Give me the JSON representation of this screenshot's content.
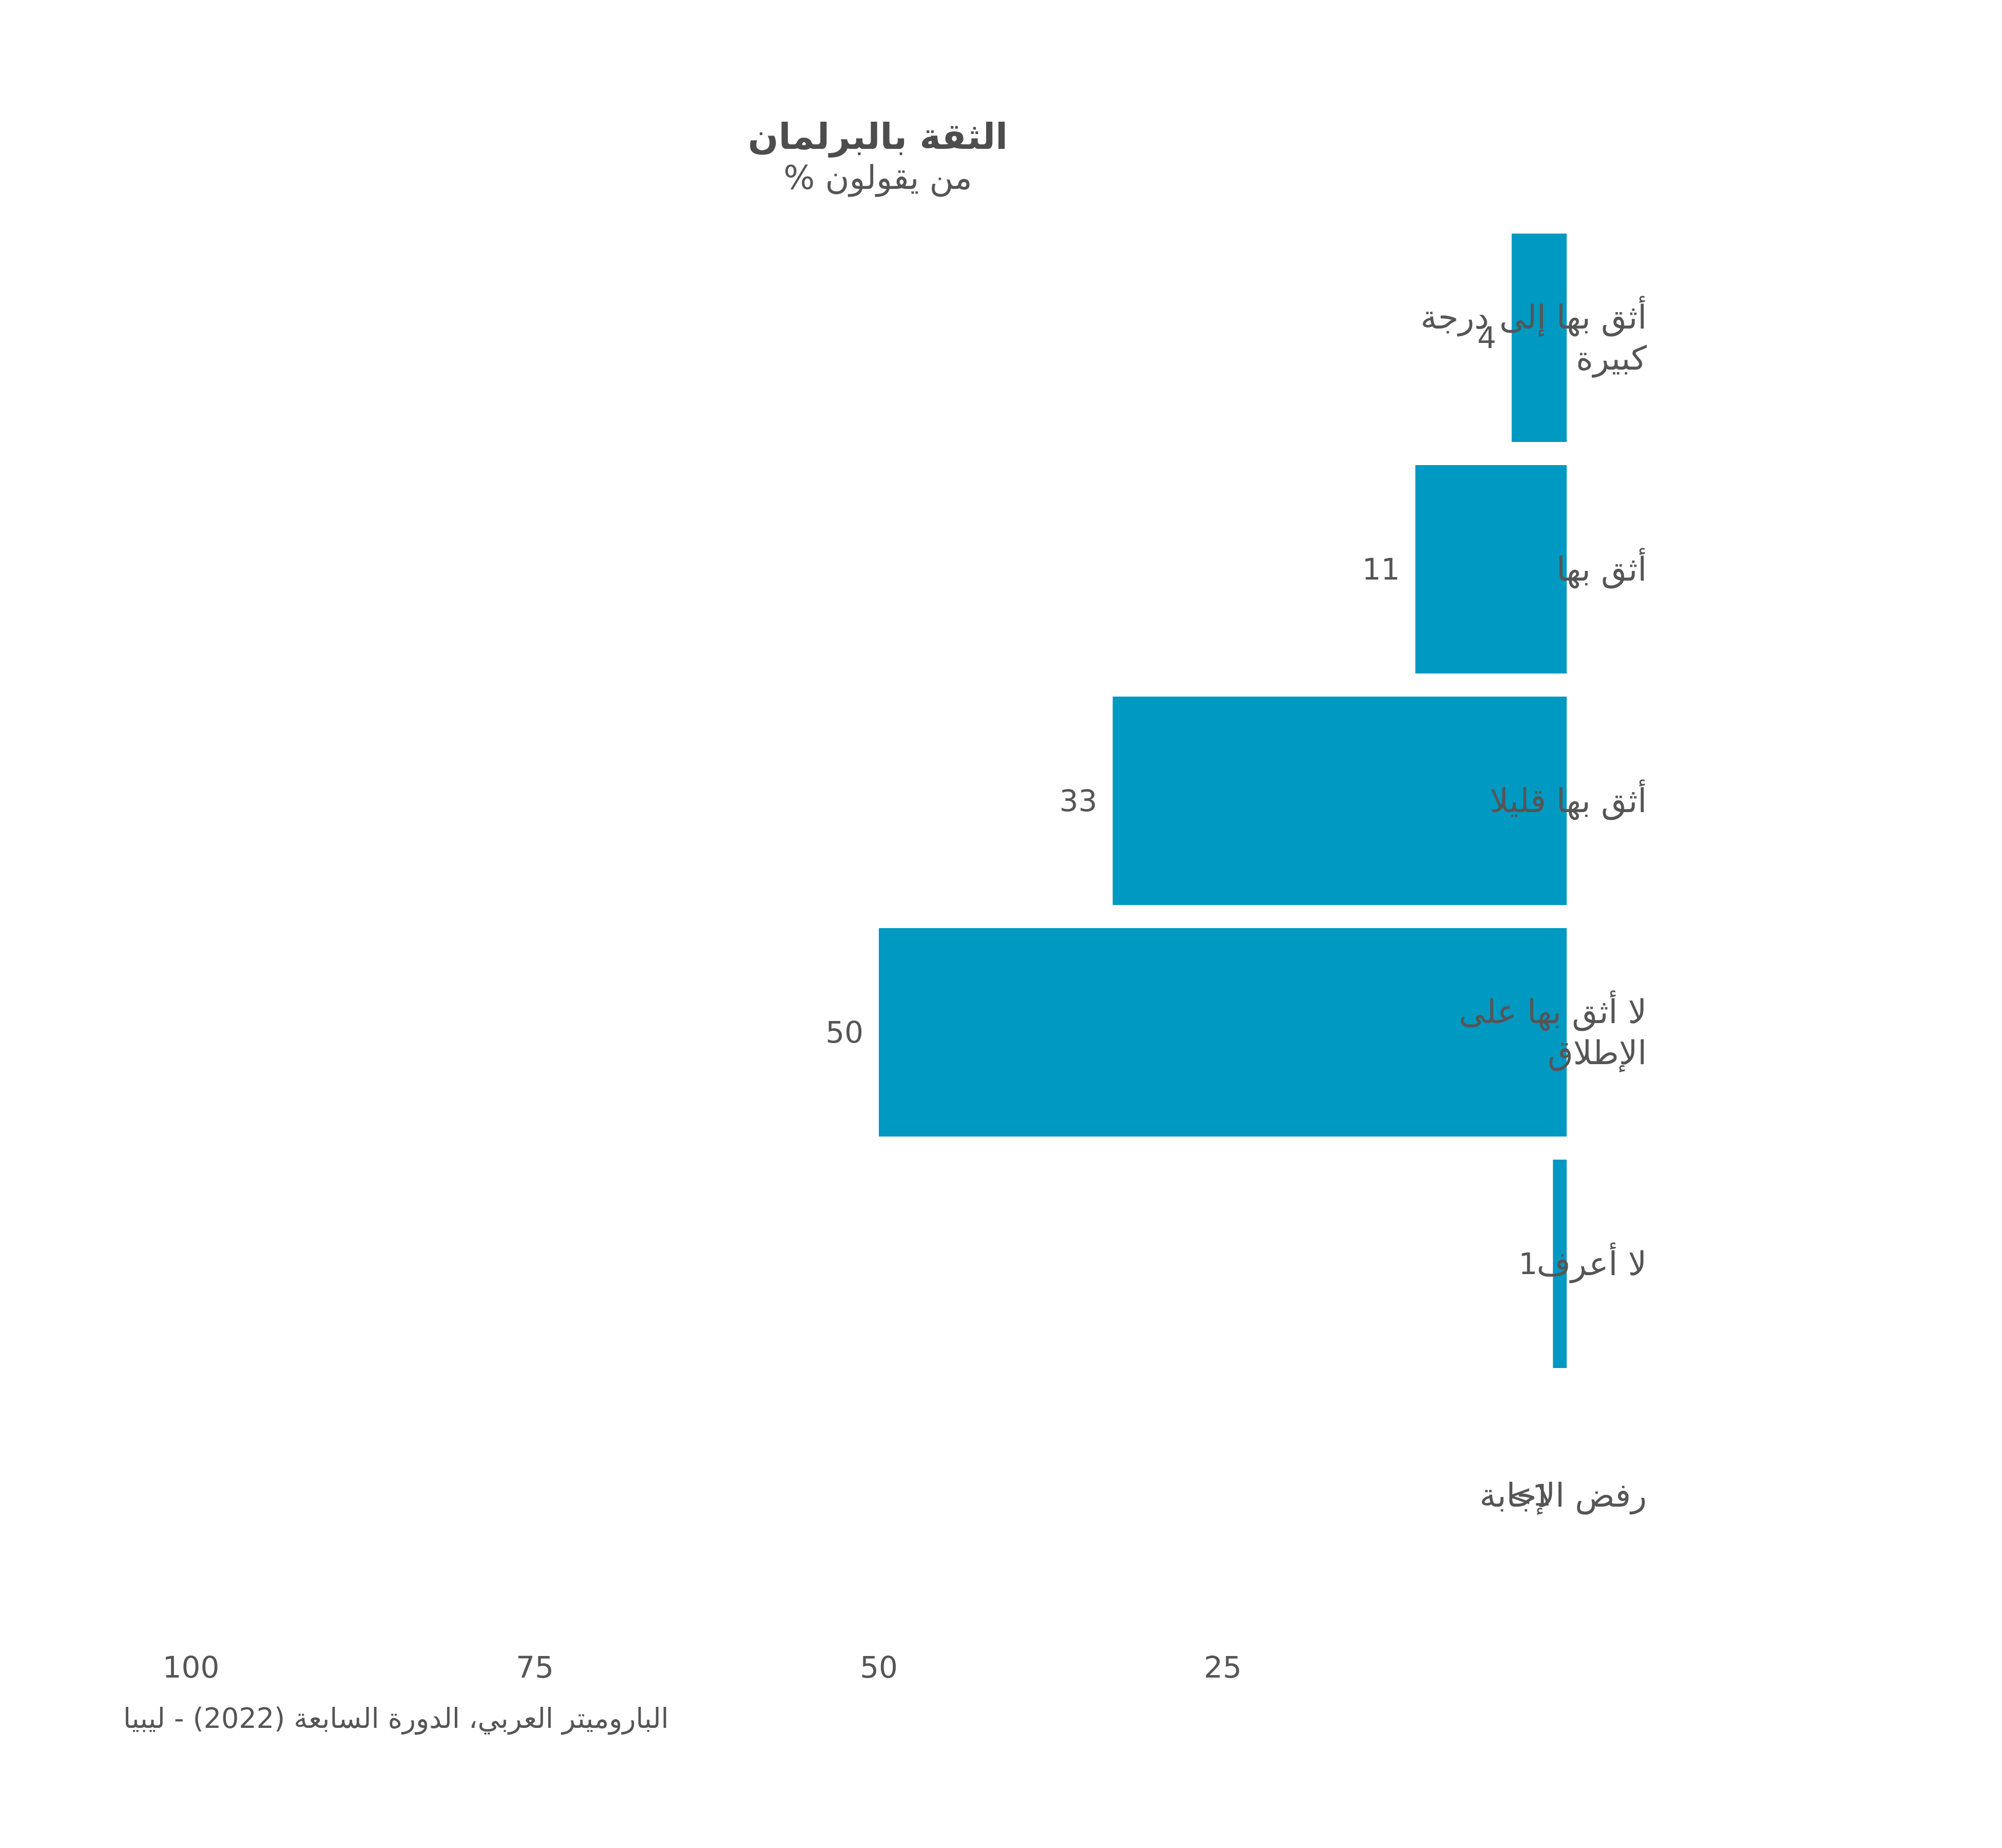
{
  "chart_data": {
    "type": "bar",
    "orientation": "horizontal",
    "direction": "right-to-left",
    "title": "الثقة بالبرلمان",
    "subtitle": "% من يقولون",
    "categories": [
      [
        "أثق بها إلى درجة",
        "كبيرة"
      ],
      [
        "أثق بها"
      ],
      [
        "أثق بها قليلا"
      ],
      [
        "لا أثق بها على",
        "الإطلاق"
      ],
      [
        "لا أعرف"
      ],
      [
        "رفض الإجابة"
      ]
    ],
    "values": [
      4,
      11,
      33,
      50,
      1,
      0
    ],
    "value_labels": [
      "4",
      "11",
      "33",
      "50",
      "1",
      "<1"
    ],
    "xlim": [
      0,
      100
    ],
    "xticks": [
      "100",
      "75",
      "50",
      "25"
    ],
    "grid": false,
    "bar_color": "#0099c1",
    "source": "الباروميتر العربي، الدورة السابعة (2022) - ليبيا"
  }
}
